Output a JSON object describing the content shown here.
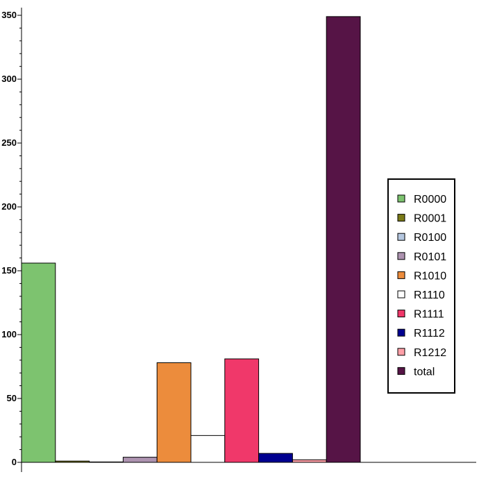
{
  "chart_data": {
    "type": "bar",
    "categories": [
      "R0000",
      "R0001",
      "R0100",
      "R0101",
      "R1010",
      "R1110",
      "R1111",
      "R1112",
      "R1212",
      "total"
    ],
    "values": [
      156,
      1,
      0,
      4,
      78,
      21,
      81,
      7,
      2,
      349
    ],
    "colors": [
      "#7dc36f",
      "#7a7a18",
      "#b5c7df",
      "#ad93b0",
      "#ec8c3c",
      "#ffffff",
      "#f0386a",
      "#000090",
      "#ffa0a8",
      "#561446"
    ],
    "ylim": [
      0,
      356
    ],
    "yticks": [
      0,
      50,
      100,
      150,
      200,
      250,
      300,
      350
    ],
    "grid": false,
    "legend_position": "right"
  }
}
